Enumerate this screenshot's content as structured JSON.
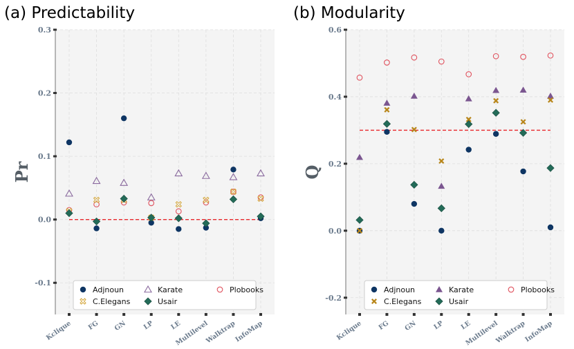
{
  "chart_data": [
    {
      "type": "scatter",
      "title": "(a) Predictability",
      "ylabel": "Pr",
      "xlabel": "",
      "ylim": [
        -0.15,
        0.3
      ],
      "yticks": [
        -0.1,
        0.0,
        0.1,
        0.2,
        0.3
      ],
      "ytick_labels": [
        "-0.1",
        "0.0",
        "0.1",
        "0.2",
        "0.3"
      ],
      "categories": [
        "Kclique",
        "FG",
        "GN",
        "LP",
        "LE",
        "Multilevel",
        "Walktrap",
        "InfoMap"
      ],
      "reference_line": 0.0,
      "grid": true,
      "legend_position": "lower-center",
      "series": [
        {
          "name": "Adjnoun",
          "marker": "circle-filled",
          "color": "#0e3563",
          "values": [
            0.122,
            -0.014,
            0.16,
            -0.005,
            -0.015,
            -0.013,
            0.079,
            0.002
          ]
        },
        {
          "name": "Karate",
          "marker": "triangle-open",
          "color": "#8a6a9e",
          "values": [
            0.041,
            0.061,
            0.058,
            0.035,
            0.073,
            0.069,
            0.067,
            0.073
          ]
        },
        {
          "name": "Plobooks",
          "marker": "circle-open",
          "color": "#e0525e",
          "values": [
            0.015,
            0.024,
            0.027,
            0.026,
            0.013,
            0.027,
            0.044,
            0.035
          ]
        },
        {
          "name": "C.Elegans",
          "marker": "x-open",
          "color": "#d4a63a",
          "values": [
            0.013,
            0.031,
            0.031,
            0.003,
            0.024,
            0.031,
            0.044,
            0.033
          ]
        },
        {
          "name": "Usair",
          "marker": "diamond-filled",
          "color": "#236b58",
          "values": [
            0.01,
            -0.003,
            0.033,
            0.003,
            0.002,
            -0.006,
            0.032,
            0.005
          ]
        }
      ]
    },
    {
      "type": "scatter",
      "title": "(b) Modularity",
      "ylabel": "Q",
      "xlabel": "",
      "ylim": [
        -0.25,
        0.6
      ],
      "yticks": [
        -0.2,
        0.0,
        0.2,
        0.4,
        0.6
      ],
      "ytick_labels": [
        "-0.2",
        "0.0",
        "0.2",
        "0.4",
        "0.6"
      ],
      "categories": [
        "Kclique",
        "FG",
        "GN",
        "LP",
        "LE",
        "Multilevel",
        "Walktrap",
        "InfoMap"
      ],
      "reference_line": 0.3,
      "grid": true,
      "legend_position": "lower-center",
      "series": [
        {
          "name": "Adjnoun",
          "marker": "circle-filled",
          "color": "#0e3563",
          "values": [
            0.0,
            0.295,
            0.08,
            0.0,
            0.242,
            0.289,
            0.177,
            0.01
          ]
        },
        {
          "name": "Karate",
          "marker": "triangle-filled",
          "color": "#7b5690",
          "values": [
            0.219,
            0.381,
            0.402,
            0.133,
            0.394,
            0.419,
            0.42,
            0.402
          ]
        },
        {
          "name": "Plobooks",
          "marker": "circle-open",
          "color": "#e0525e",
          "values": [
            0.457,
            0.502,
            0.517,
            0.505,
            0.467,
            0.521,
            0.519,
            0.523
          ]
        },
        {
          "name": "C.Elegans",
          "marker": "x-filled",
          "color": "#b8861a",
          "values": [
            0.0,
            0.361,
            0.302,
            0.208,
            0.332,
            0.388,
            0.325,
            0.39
          ]
        },
        {
          "name": "Usair",
          "marker": "diamond-filled",
          "color": "#236b58",
          "values": [
            0.032,
            0.319,
            0.137,
            0.067,
            0.318,
            0.352,
            0.292,
            0.187
          ]
        }
      ]
    }
  ]
}
